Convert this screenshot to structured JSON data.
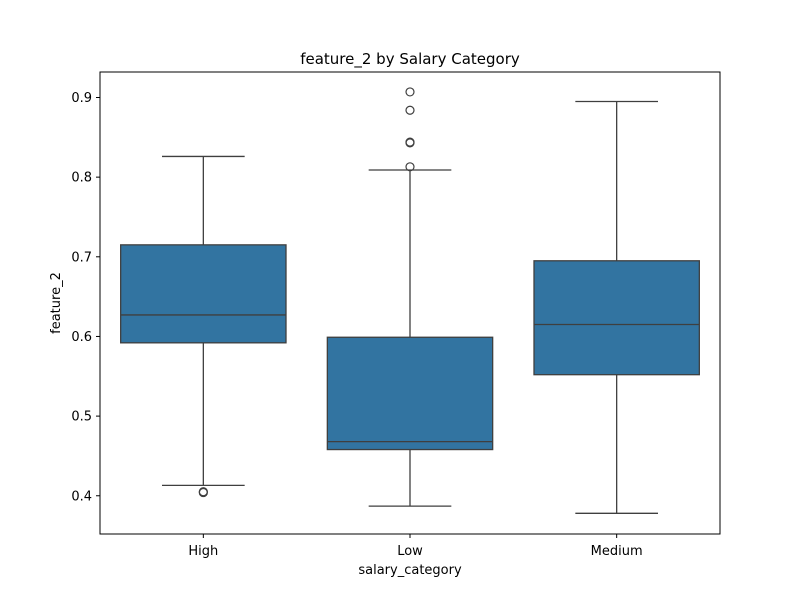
{
  "chart_data": {
    "type": "box",
    "title": "feature_2 by Salary Category",
    "xlabel": "salary_category",
    "ylabel": "feature_2",
    "categories": [
      "High",
      "Low",
      "Medium"
    ],
    "ylim": [
      0.352,
      0.932
    ],
    "yticks": [
      0.4,
      0.5,
      0.6,
      0.7,
      0.8,
      0.9
    ],
    "ytick_labels": [
      "0.4",
      "0.5",
      "0.6",
      "0.7",
      "0.8",
      "0.9"
    ],
    "grid": false,
    "legend": "none",
    "box_color": "#3274a1",
    "line_color": "#3f3f3f",
    "boxes": [
      {
        "category": "High",
        "whisker_low": 0.413,
        "q1": 0.592,
        "median": 0.627,
        "q3": 0.715,
        "whisker_high": 0.826,
        "outliers": [
          0.404,
          0.405
        ]
      },
      {
        "category": "Low",
        "whisker_low": 0.387,
        "q1": 0.458,
        "median": 0.468,
        "q3": 0.599,
        "whisker_high": 0.809,
        "outliers": [
          0.813,
          0.843,
          0.844,
          0.884,
          0.907
        ]
      },
      {
        "category": "Medium",
        "whisker_low": 0.378,
        "q1": 0.552,
        "median": 0.615,
        "q3": 0.695,
        "whisker_high": 0.895,
        "outliers": []
      }
    ]
  }
}
